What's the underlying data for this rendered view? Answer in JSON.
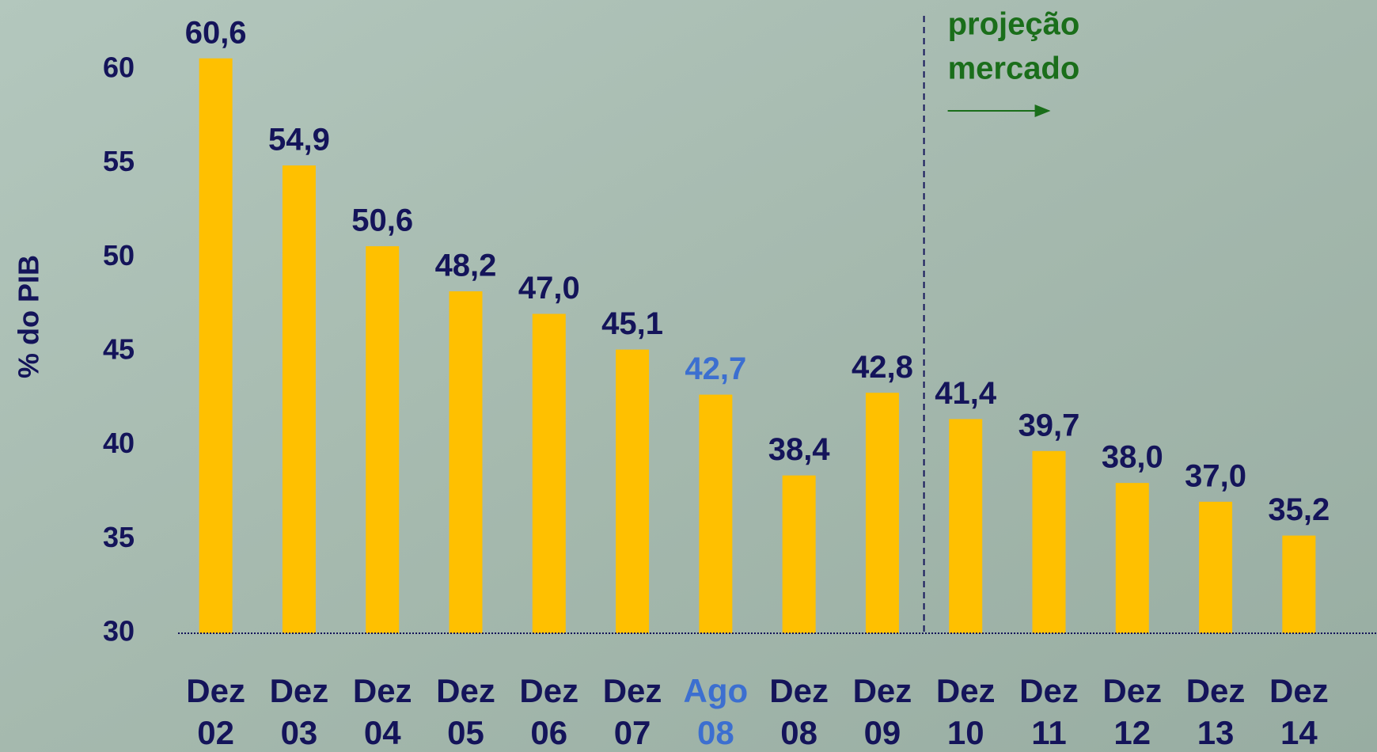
{
  "chart_data": {
    "type": "bar",
    "y_label": "% do PIB",
    "categories": [
      [
        "Dez",
        "02"
      ],
      [
        "Dez",
        "03"
      ],
      [
        "Dez",
        "04"
      ],
      [
        "Dez",
        "05"
      ],
      [
        "Dez",
        "06"
      ],
      [
        "Dez",
        "07"
      ],
      [
        "Ago",
        "08"
      ],
      [
        "Dez",
        "08"
      ],
      [
        "Dez",
        "09"
      ],
      [
        "Dez",
        "10"
      ],
      [
        "Dez",
        "11"
      ],
      [
        "Dez",
        "12"
      ],
      [
        "Dez",
        "13"
      ],
      [
        "Dez",
        "14"
      ]
    ],
    "values": [
      60.6,
      54.9,
      50.6,
      48.2,
      47.0,
      45.1,
      42.7,
      38.4,
      42.8,
      41.4,
      39.7,
      38.0,
      37.0,
      35.2
    ],
    "value_labels": [
      "60,6",
      "54,9",
      "50,6",
      "48,2",
      "47,0",
      "45,1",
      "42,7",
      "38,4",
      "42,8",
      "41,4",
      "39,7",
      "38,0",
      "37,0",
      "35,2"
    ],
    "color": "#ffc000",
    "text_color": "#14145a",
    "highlight": {
      "index": 6,
      "color": "#3c6fd0"
    },
    "annotation": {
      "lines": [
        "projeção",
        "mercado"
      ],
      "color": "#1a6e1a"
    },
    "ylim": [
      30,
      62
    ],
    "yticks": [
      30,
      35,
      40,
      45,
      50,
      55,
      60
    ]
  }
}
